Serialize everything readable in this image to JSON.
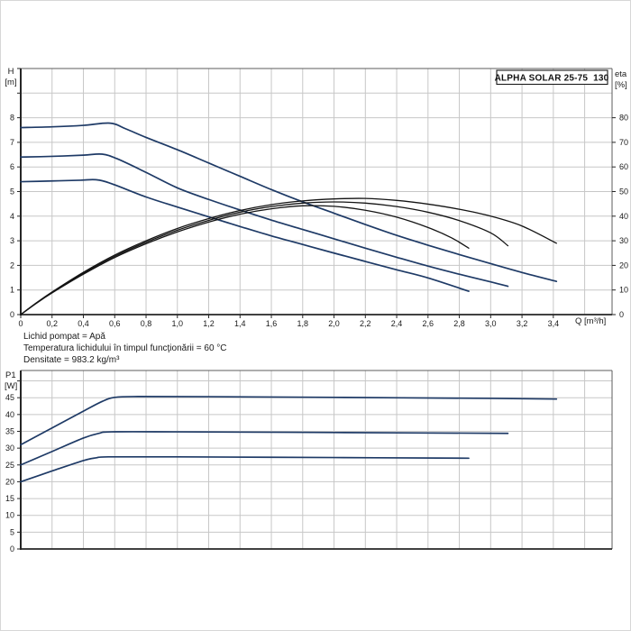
{
  "header": {
    "model": "ALPHA SOLAR 25-75  130"
  },
  "top_chart": {
    "ylabel_left_line1": "H",
    "ylabel_left_line2": "[m]",
    "ylabel_right_line1": "eta",
    "ylabel_right_line2": "[%]",
    "xlabel": "Q [m³/h]"
  },
  "bottom_chart": {
    "ylabel_line1": "P1",
    "ylabel_line2": "[W]"
  },
  "notes": [
    "Lichid pompat = Apă",
    "Temperatura lichidului în timpul funcţionării = 60 °C",
    "Densitate = 983.2 kg/m³"
  ],
  "colors": {
    "blue": "#1e3a66",
    "black": "#141414",
    "grid": "#c7c7c7",
    "axis": "#262626",
    "border": "#5c5c5c",
    "text": "#1a1a1a"
  },
  "chart_data": [
    {
      "type": "line",
      "name": "hq-eta-chart",
      "title": "ALPHA SOLAR 25-75  130",
      "xlabel": "Q [m³/h]",
      "ylabel_left": "H [m]",
      "ylabel_right": "eta [%]",
      "xlim": [
        0,
        3.775
      ],
      "ylim_left": [
        0,
        10
      ],
      "ylim_right": [
        0,
        100
      ],
      "grid": true,
      "legend": "none",
      "x_gridlines": [
        0.2,
        0.4,
        0.6,
        0.8,
        1.0,
        1.2,
        1.4,
        1.6,
        1.8,
        2.0,
        2.2,
        2.4,
        2.6,
        2.8,
        3.0,
        3.2,
        3.4,
        3.6
      ],
      "y_gridlines": [
        1,
        2,
        3,
        4,
        5,
        6,
        7,
        8,
        9
      ],
      "x_ticks": [
        {
          "v": 0,
          "label": "0"
        },
        {
          "v": 0.2,
          "label": "0,2"
        },
        {
          "v": 0.4,
          "label": "0,4"
        },
        {
          "v": 0.6,
          "label": "0,6"
        },
        {
          "v": 0.8,
          "label": "0,8"
        },
        {
          "v": 1.0,
          "label": "1,0"
        },
        {
          "v": 1.2,
          "label": "1,2"
        },
        {
          "v": 1.4,
          "label": "1,4"
        },
        {
          "v": 1.6,
          "label": "1,6"
        },
        {
          "v": 1.8,
          "label": "1,8"
        },
        {
          "v": 2.0,
          "label": "2,0"
        },
        {
          "v": 2.2,
          "label": "2,2"
        },
        {
          "v": 2.4,
          "label": "2,4"
        },
        {
          "v": 2.6,
          "label": "2,6"
        },
        {
          "v": 2.8,
          "label": "2,8"
        },
        {
          "v": 3.0,
          "label": "3,0"
        },
        {
          "v": 3.2,
          "label": "3,2"
        },
        {
          "v": 3.4,
          "label": "3,4"
        }
      ],
      "y_ticks_left": [
        {
          "v": 0,
          "label": "0"
        },
        {
          "v": 1,
          "label": "1"
        },
        {
          "v": 2,
          "label": "2"
        },
        {
          "v": 3,
          "label": "3"
        },
        {
          "v": 4,
          "label": "4"
        },
        {
          "v": 5,
          "label": "5"
        },
        {
          "v": 6,
          "label": "6"
        },
        {
          "v": 7,
          "label": "7"
        },
        {
          "v": 8,
          "label": "8"
        },
        {
          "v": 9,
          "label": ""
        },
        {
          "v": 10,
          "label": ""
        }
      ],
      "y_ticks_right": [
        {
          "v": 0,
          "label": "0"
        },
        {
          "v": 10,
          "label": "10"
        },
        {
          "v": 20,
          "label": "20"
        },
        {
          "v": 30,
          "label": "30"
        },
        {
          "v": 40,
          "label": "40"
        },
        {
          "v": 50,
          "label": "50"
        },
        {
          "v": 60,
          "label": "60"
        },
        {
          "v": 70,
          "label": "70"
        },
        {
          "v": 80,
          "label": "80"
        }
      ],
      "series": [
        {
          "name": "pump-curve-speed-3",
          "axis": "left",
          "color": "blue",
          "points": [
            [
              0,
              7.6
            ],
            [
              0.2,
              7.63
            ],
            [
              0.4,
              7.69
            ],
            [
              0.57,
              7.78
            ],
            [
              0.67,
              7.55
            ],
            [
              0.8,
              7.2
            ],
            [
              1.0,
              6.7
            ],
            [
              1.2,
              6.16
            ],
            [
              1.4,
              5.62
            ],
            [
              1.6,
              5.08
            ],
            [
              1.8,
              4.58
            ],
            [
              2.0,
              4.12
            ],
            [
              2.2,
              3.66
            ],
            [
              2.4,
              3.22
            ],
            [
              2.6,
              2.82
            ],
            [
              2.8,
              2.44
            ],
            [
              3.0,
              2.07
            ],
            [
              3.2,
              1.71
            ],
            [
              3.42,
              1.35
            ]
          ]
        },
        {
          "name": "pump-curve-speed-2",
          "axis": "left",
          "color": "blue",
          "points": [
            [
              0,
              6.4
            ],
            [
              0.2,
              6.43
            ],
            [
              0.4,
              6.48
            ],
            [
              0.52,
              6.52
            ],
            [
              0.62,
              6.32
            ],
            [
              0.8,
              5.78
            ],
            [
              1.0,
              5.15
            ],
            [
              1.2,
              4.68
            ],
            [
              1.4,
              4.25
            ],
            [
              1.6,
              3.84
            ],
            [
              1.8,
              3.46
            ],
            [
              2.0,
              3.08
            ],
            [
              2.2,
              2.7
            ],
            [
              2.4,
              2.33
            ],
            [
              2.6,
              1.97
            ],
            [
              2.8,
              1.64
            ],
            [
              3.0,
              1.33
            ],
            [
              3.11,
              1.15
            ]
          ]
        },
        {
          "name": "pump-curve-speed-1",
          "axis": "left",
          "color": "blue",
          "points": [
            [
              0,
              5.4
            ],
            [
              0.2,
              5.43
            ],
            [
              0.38,
              5.46
            ],
            [
              0.48,
              5.48
            ],
            [
              0.58,
              5.32
            ],
            [
              0.8,
              4.78
            ],
            [
              1.0,
              4.37
            ],
            [
              1.2,
              3.97
            ],
            [
              1.4,
              3.58
            ],
            [
              1.6,
              3.2
            ],
            [
              1.8,
              2.85
            ],
            [
              2.0,
              2.5
            ],
            [
              2.2,
              2.16
            ],
            [
              2.4,
              1.82
            ],
            [
              2.6,
              1.49
            ],
            [
              2.86,
              0.95
            ]
          ]
        },
        {
          "name": "eta-curve-speed-3",
          "axis": "right",
          "color": "black",
          "points": [
            [
              0,
              0
            ],
            [
              0.1,
              4.8
            ],
            [
              0.2,
              9.2
            ],
            [
              0.4,
              17.2
            ],
            [
              0.6,
              24.2
            ],
            [
              0.8,
              30
            ],
            [
              1.0,
              35
            ],
            [
              1.2,
              39
            ],
            [
              1.4,
              42.3
            ],
            [
              1.6,
              44.7
            ],
            [
              1.8,
              46.2
            ],
            [
              2.0,
              47
            ],
            [
              2.2,
              47.2
            ],
            [
              2.4,
              46.4
            ],
            [
              2.6,
              44.9
            ],
            [
              2.8,
              42.8
            ],
            [
              3.0,
              40
            ],
            [
              3.2,
              36
            ],
            [
              3.42,
              29
            ]
          ]
        },
        {
          "name": "eta-curve-speed-2",
          "axis": "right",
          "color": "black",
          "points": [
            [
              0,
              0
            ],
            [
              0.1,
              4.7
            ],
            [
              0.2,
              9
            ],
            [
              0.4,
              16.8
            ],
            [
              0.6,
              23.7
            ],
            [
              0.8,
              29.4
            ],
            [
              1.0,
              34.3
            ],
            [
              1.2,
              38.3
            ],
            [
              1.4,
              41.6
            ],
            [
              1.6,
              43.9
            ],
            [
              1.8,
              45.3
            ],
            [
              2.0,
              45.8
            ],
            [
              2.2,
              45.3
            ],
            [
              2.4,
              43.9
            ],
            [
              2.6,
              41.6
            ],
            [
              2.8,
              38.2
            ],
            [
              3.0,
              33.2
            ],
            [
              3.11,
              28
            ]
          ]
        },
        {
          "name": "eta-curve-speed-1",
          "axis": "right",
          "color": "black",
          "points": [
            [
              0,
              0
            ],
            [
              0.1,
              4.6
            ],
            [
              0.2,
              8.8
            ],
            [
              0.4,
              16.4
            ],
            [
              0.6,
              23.2
            ],
            [
              0.8,
              28.8
            ],
            [
              1.0,
              33.6
            ],
            [
              1.2,
              37.6
            ],
            [
              1.4,
              40.8
            ],
            [
              1.6,
              43
            ],
            [
              1.8,
              44.2
            ],
            [
              2.0,
              44
            ],
            [
              2.2,
              42.4
            ],
            [
              2.4,
              39.6
            ],
            [
              2.6,
              35.4
            ],
            [
              2.75,
              31.2
            ],
            [
              2.86,
              27
            ]
          ]
        }
      ]
    },
    {
      "type": "line",
      "name": "p1-power-chart",
      "title": "",
      "xlabel": "",
      "ylabel_left": "P1 [W]",
      "xlim": [
        0,
        3.775
      ],
      "ylim_left": [
        0,
        53.1
      ],
      "grid": true,
      "legend": "none",
      "x_gridlines": [
        0.2,
        0.4,
        0.6,
        0.8,
        1.0,
        1.2,
        1.4,
        1.6,
        1.8,
        2.0,
        2.2,
        2.4,
        2.6,
        2.8,
        3.0,
        3.2,
        3.4,
        3.6
      ],
      "y_gridlines": [
        5,
        10,
        15,
        20,
        25,
        30,
        35,
        40,
        45,
        50
      ],
      "x_ticks": [],
      "y_ticks_left": [
        {
          "v": 0,
          "label": "0"
        },
        {
          "v": 5,
          "label": "5"
        },
        {
          "v": 10,
          "label": "10"
        },
        {
          "v": 15,
          "label": "15"
        },
        {
          "v": 20,
          "label": "20"
        },
        {
          "v": 25,
          "label": "25"
        },
        {
          "v": 30,
          "label": "30"
        },
        {
          "v": 35,
          "label": "35"
        },
        {
          "v": 40,
          "label": "40"
        },
        {
          "v": 45,
          "label": "45"
        },
        {
          "v": 50,
          "label": ""
        }
      ],
      "series": [
        {
          "name": "power-curve-speed-3",
          "axis": "left",
          "color": "blue",
          "points": [
            [
              0,
              31
            ],
            [
              0.2,
              36
            ],
            [
              0.4,
              41
            ],
            [
              0.52,
              43.9
            ],
            [
              0.6,
              45.1
            ],
            [
              0.75,
              45.35
            ],
            [
              1.2,
              45.3
            ],
            [
              2.0,
              45.1
            ],
            [
              3.0,
              44.8
            ],
            [
              3.42,
              44.6
            ]
          ]
        },
        {
          "name": "power-curve-speed-2",
          "axis": "left",
          "color": "blue",
          "points": [
            [
              0,
              25
            ],
            [
              0.2,
              29
            ],
            [
              0.4,
              33
            ],
            [
              0.5,
              34.4
            ],
            [
              0.58,
              34.85
            ],
            [
              1.0,
              34.85
            ],
            [
              2.0,
              34.65
            ],
            [
              3.11,
              34.4
            ]
          ]
        },
        {
          "name": "power-curve-speed-1",
          "axis": "left",
          "color": "blue",
          "points": [
            [
              0,
              20
            ],
            [
              0.2,
              23.2
            ],
            [
              0.4,
              26.3
            ],
            [
              0.48,
              27.1
            ],
            [
              0.56,
              27.4
            ],
            [
              1.0,
              27.4
            ],
            [
              2.0,
              27.2
            ],
            [
              2.86,
              27.0
            ]
          ]
        }
      ]
    }
  ]
}
